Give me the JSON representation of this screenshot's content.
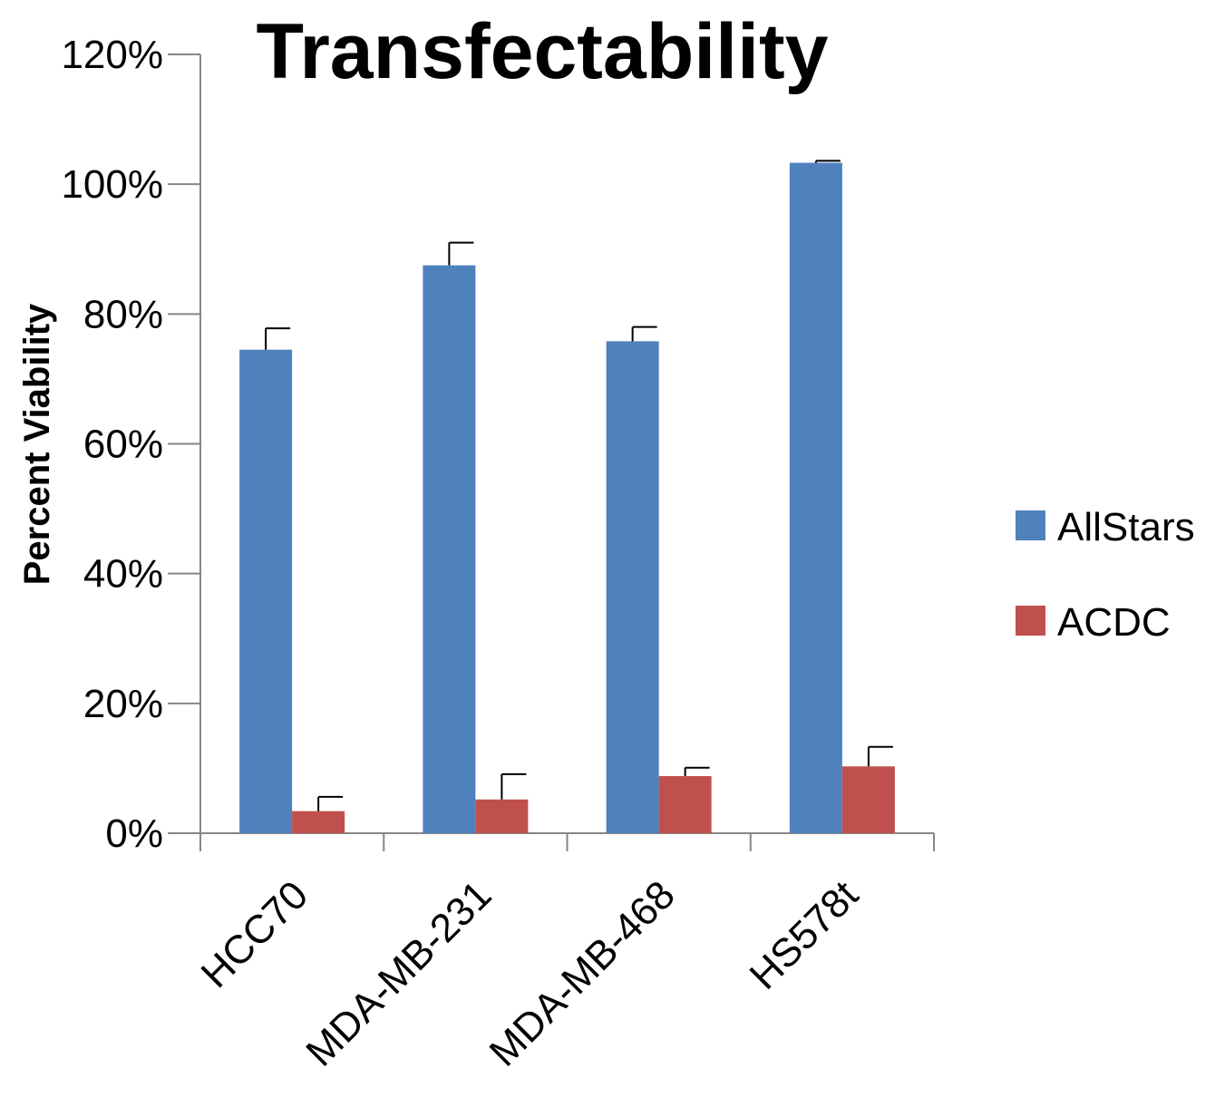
{
  "chart_data": {
    "type": "bar",
    "title": "Transfectability",
    "xlabel": "",
    "ylabel": "Percent Viability",
    "categories": [
      "HCC70",
      "MDA-MB-231",
      "MDA-MB-468",
      "HS578t"
    ],
    "series": [
      {
        "name": "AllStars",
        "color": "#4F81BD",
        "values": [
          74.5,
          87.5,
          75.8,
          103.3
        ],
        "error": [
          3.3,
          3.5,
          2.2,
          0.3
        ]
      },
      {
        "name": "ACDC",
        "color": "#C0504D",
        "values": [
          3.4,
          5.2,
          8.8,
          10.3
        ],
        "error": [
          2.2,
          3.9,
          1.3,
          3.0
        ]
      }
    ],
    "ylim": [
      0,
      120
    ],
    "yticks": [
      "0%",
      "20%",
      "40%",
      "60%",
      "80%",
      "100%",
      "120%"
    ],
    "grid": false,
    "legend": "right"
  }
}
